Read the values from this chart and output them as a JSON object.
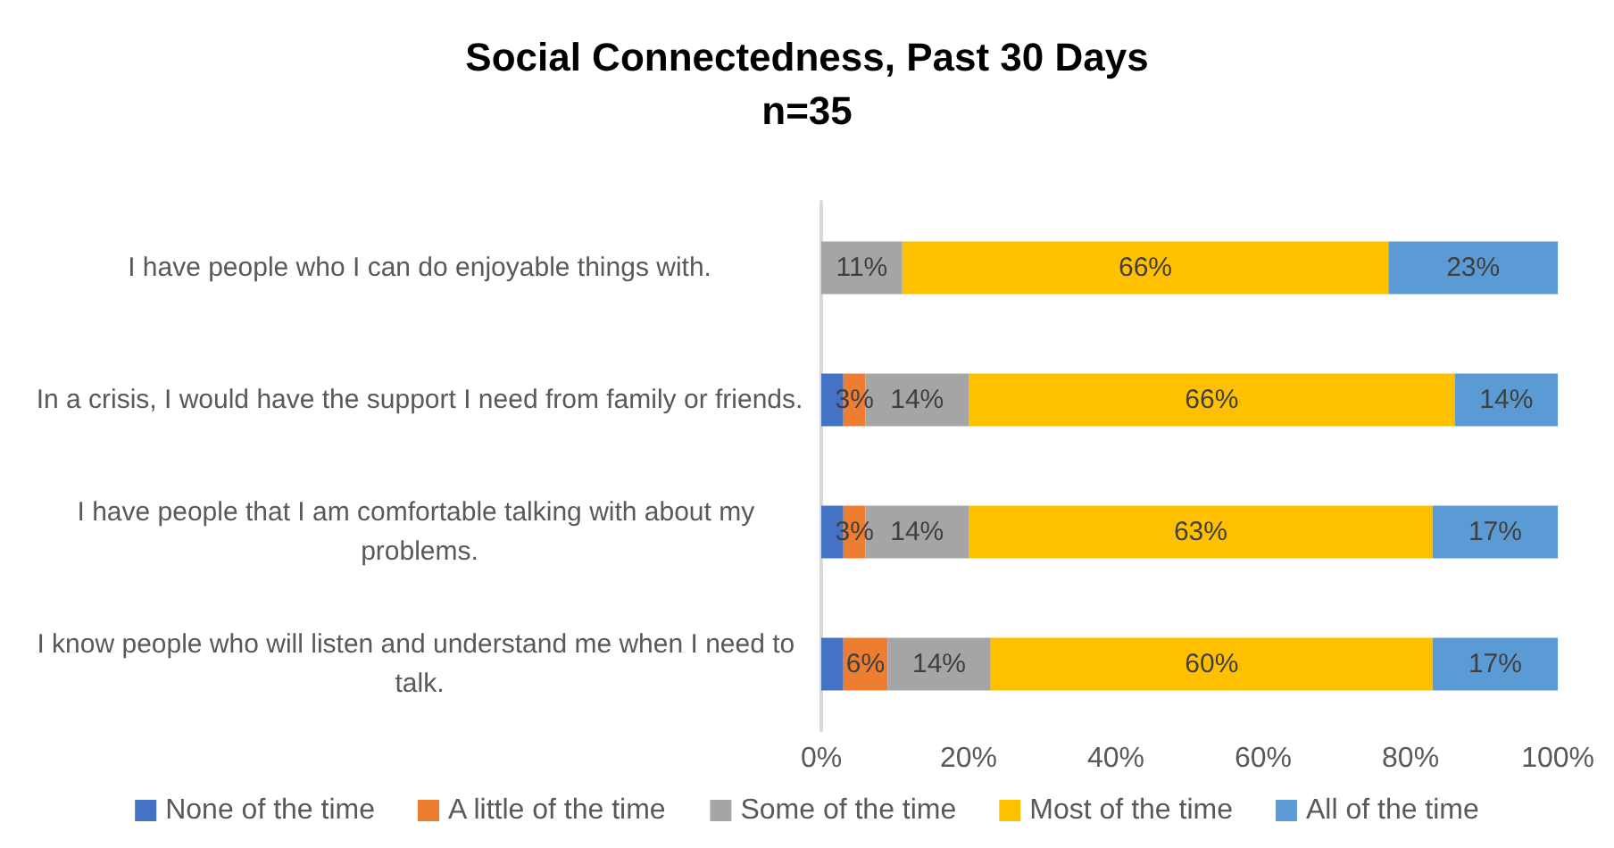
{
  "chart_data": {
    "type": "bar",
    "orientation": "horizontal",
    "stacked": true,
    "title": "Social Connectedness, Past 30 Days",
    "subtitle": "n=35",
    "categories": [
      "I have people who I can do enjoyable things with.",
      "In a crisis, I would have the support I need from family or friends.",
      "I have people that I am comfortable talking with about my problems.",
      "I know people who will listen and understand me when I need to talk."
    ],
    "series": [
      {
        "name": "None of the time",
        "color": "#4472c4",
        "values": [
          0,
          3,
          3,
          3
        ],
        "value_labels": [
          null,
          null,
          null,
          null
        ]
      },
      {
        "name": "A little of the time",
        "color": "#ed7d31",
        "values": [
          0,
          3,
          3,
          6
        ],
        "value_labels": [
          null,
          "3%",
          "3%",
          "6%"
        ]
      },
      {
        "name": "Some of the time",
        "color": "#a5a5a5",
        "values": [
          11,
          14,
          14,
          14
        ],
        "value_labels": [
          "11%",
          "14%",
          "14%",
          "14%"
        ]
      },
      {
        "name": "Most of the time",
        "color": "#ffc000",
        "values": [
          66,
          66,
          63,
          60
        ],
        "value_labels": [
          "66%",
          "66%",
          "63%",
          "60%"
        ]
      },
      {
        "name": "All of the time",
        "color": "#5b9bd5",
        "values": [
          23,
          14,
          17,
          17
        ],
        "value_labels": [
          "23%",
          "14%",
          "17%",
          "17%"
        ]
      }
    ],
    "xlim": [
      0,
      100
    ],
    "xticks": [
      {
        "value": 0,
        "label": "0%"
      },
      {
        "value": 20,
        "label": "20%"
      },
      {
        "value": 40,
        "label": "40%"
      },
      {
        "value": 60,
        "label": "60%"
      },
      {
        "value": 80,
        "label": "80%"
      },
      {
        "value": 100,
        "label": "100%"
      }
    ],
    "grid": false,
    "legend": "bottom"
  }
}
